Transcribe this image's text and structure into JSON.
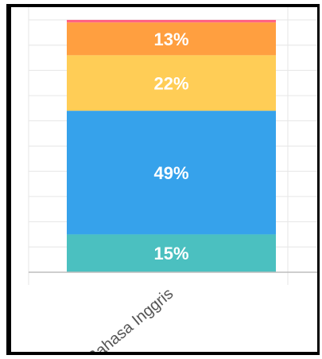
{
  "chart_data": {
    "type": "bar",
    "stacked": true,
    "percent": true,
    "categories": [
      "Bahasa Inggris"
    ],
    "series": [
      {
        "values": [
          15
        ],
        "color": "#4bc0c0"
      },
      {
        "values": [
          49
        ],
        "color": "#36a2eb"
      },
      {
        "values": [
          22
        ],
        "color": "#ffcd56"
      },
      {
        "values": [
          13
        ],
        "color": "#ff9f40"
      },
      {
        "values": [
          1
        ],
        "color": "#ff6384"
      }
    ],
    "data_labels": [
      "15%",
      "49%",
      "22%",
      "13%",
      ""
    ],
    "ylim": [
      0,
      100
    ],
    "grid": true,
    "colors": {
      "grid": "#e6e6e6",
      "axis": "#bdbdbd"
    }
  }
}
